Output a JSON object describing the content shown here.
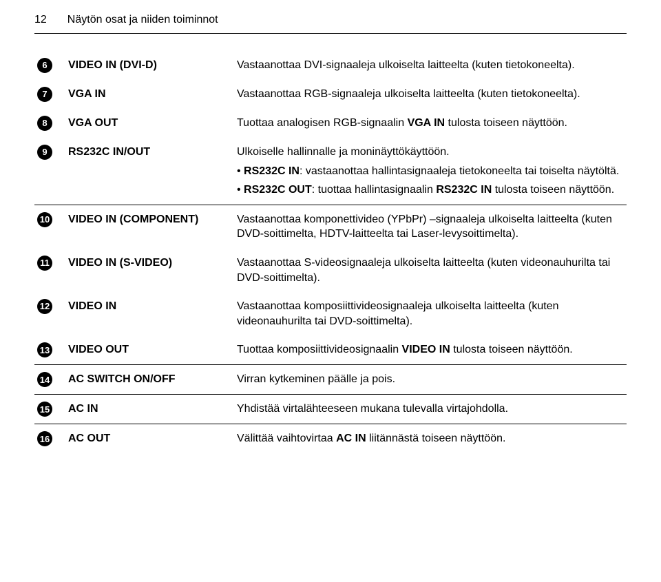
{
  "page_number": "12",
  "page_title": "Näytön osat ja niiden toiminnot",
  "rows": [
    {
      "num": "6",
      "label": "VIDEO IN (DVI-D)",
      "desc": "Vastaanottaa DVI-signaaleja ulkoiselta laitteelta (kuten tietokoneelta).",
      "underline": false
    },
    {
      "num": "7",
      "label": "VGA IN",
      "desc": "Vastaanottaa RGB-signaaleja ulkoiselta laitteelta (kuten tietokoneelta).",
      "underline": false
    },
    {
      "num": "8",
      "label": "VGA OUT",
      "desc_parts": [
        {
          "t": "Tuottaa analogisen RGB-signaalin "
        },
        {
          "t": "VGA IN",
          "b": true
        },
        {
          "t": " tulosta toiseen näyttöön."
        }
      ],
      "underline": false
    },
    {
      "num": "9",
      "label": "RS232C IN/OUT",
      "desc": "Ulkoiselle hallinnalle ja moninäyttökäyttöön.",
      "bullets": [
        [
          {
            "t": "• "
          },
          {
            "t": "RS232C IN",
            "b": true
          },
          {
            "t": ": vastaanottaa hallintasignaaleja tietokoneelta tai toiselta näytöltä."
          }
        ],
        [
          {
            "t": "• "
          },
          {
            "t": "RS232C OUT",
            "b": true
          },
          {
            "t": ": tuottaa hallintasignaalin "
          },
          {
            "t": "RS232C IN",
            "b": true
          },
          {
            "t": " tulosta toiseen näyttöön."
          }
        ]
      ],
      "underline": true
    },
    {
      "num": "10",
      "label": "VIDEO IN (COMPONENT)",
      "desc": "Vastaanottaa komponettivideo (YPbPr) –signaaleja ulkoiselta laitteelta (kuten DVD-soittimelta, HDTV-laitteelta tai Laser-levysoittimelta).",
      "underline": false
    },
    {
      "num": "11",
      "label": "VIDEO IN (S-VIDEO)",
      "desc": "Vastaanottaa S-videosignaaleja ulkoiselta laitteelta (kuten videonauhurilta tai DVD-soittimelta).",
      "underline": false
    },
    {
      "num": "12",
      "label": "VIDEO IN",
      "desc": "Vastaanottaa komposiittivideosignaaleja ulkoiselta laitteelta (kuten videonauhurilta tai DVD-soittimelta).",
      "underline": false
    },
    {
      "num": "13",
      "label": "VIDEO OUT",
      "desc_parts": [
        {
          "t": "Tuottaa komposiittivideosignaalin "
        },
        {
          "t": "VIDEO IN",
          "b": true
        },
        {
          "t": " tulosta toiseen näyttöön."
        }
      ],
      "underline": true
    },
    {
      "num": "14",
      "label": "AC SWITCH ON/OFF",
      "desc": "Virran kytkeminen päälle ja pois.",
      "underline": true
    },
    {
      "num": "15",
      "label": "AC IN",
      "desc": "Yhdistää virtalähteeseen mukana tulevalla virtajohdolla.",
      "underline": true
    },
    {
      "num": "16",
      "label": "AC OUT",
      "desc_parts": [
        {
          "t": "Välittää vaihtovirtaa "
        },
        {
          "t": "AC IN",
          "b": true
        },
        {
          "t": " liitännästä toiseen näyttöön."
        }
      ],
      "underline": false
    }
  ]
}
